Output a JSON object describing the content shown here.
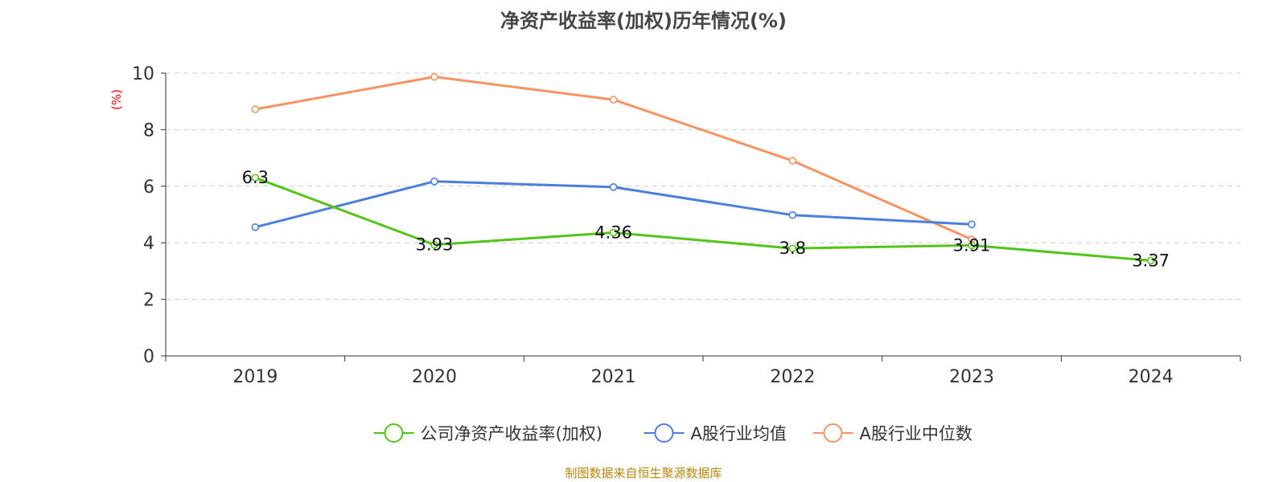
{
  "chart_data": {
    "type": "line",
    "title": "净资产收益率(加权)历年情况(%)",
    "ylabel": "(%)",
    "xlabel": "",
    "categories": [
      "2019",
      "2020",
      "2021",
      "2022",
      "2023",
      "2024"
    ],
    "ylim": [
      0,
      10
    ],
    "yticks": [
      0,
      2,
      4,
      6,
      8,
      10
    ],
    "grid": true,
    "legend_position": "bottom",
    "series": [
      {
        "name": "公司净资产收益率(加权)",
        "color": "#52c41a",
        "values": [
          6.3,
          3.93,
          4.36,
          3.8,
          3.91,
          3.37
        ],
        "labels": [
          "6.3",
          "3.93",
          "4.36",
          "3.8",
          "3.91",
          "3.37"
        ]
      },
      {
        "name": "A股行业均值",
        "color": "#4a7fe0",
        "values": [
          4.55,
          6.17,
          5.97,
          4.98,
          4.65,
          null
        ]
      },
      {
        "name": "A股行业中位数",
        "color": "#f79360",
        "values": [
          8.72,
          9.87,
          9.06,
          6.9,
          4.12,
          null
        ]
      }
    ],
    "source_note": "制图数据来自恒生聚源数据库",
    "ylabel_color": "#ff0000",
    "source_color": "#b8860b"
  }
}
